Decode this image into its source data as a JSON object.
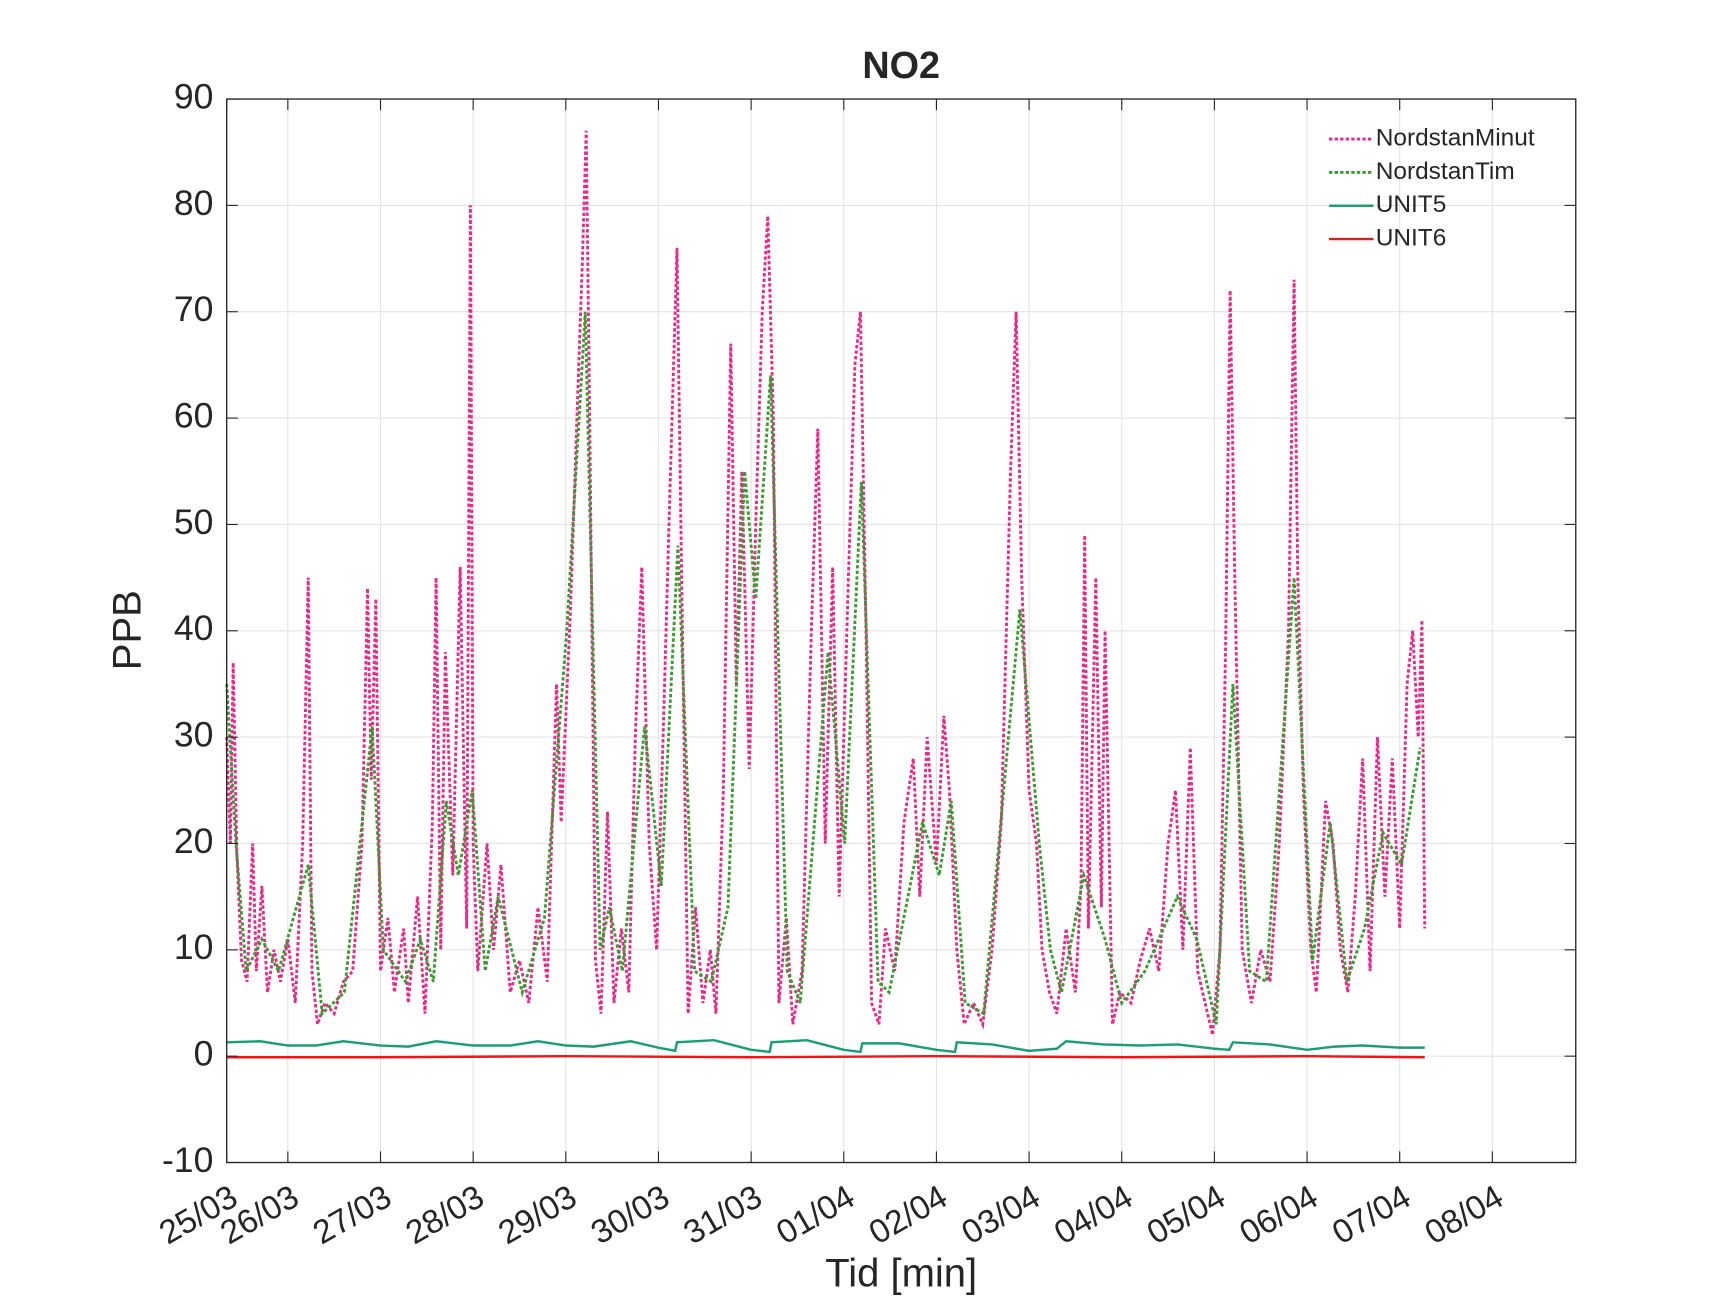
{
  "chart_data": {
    "type": "line",
    "title": "NO2",
    "xlabel": "Tid [min]",
    "ylabel": "PPB",
    "xlim": [
      0.34,
      14.9
    ],
    "xticks": [
      {
        "value": 0.34,
        "label": "25/03"
      },
      {
        "value": 1,
        "label": "26/03"
      },
      {
        "value": 2,
        "label": "27/03"
      },
      {
        "value": 3,
        "label": "28/03"
      },
      {
        "value": 4,
        "label": "29/03"
      },
      {
        "value": 5,
        "label": "30/03"
      },
      {
        "value": 6,
        "label": "31/03"
      },
      {
        "value": 7,
        "label": "01/04"
      },
      {
        "value": 8,
        "label": "02/04"
      },
      {
        "value": 9,
        "label": "03/04"
      },
      {
        "value": 10,
        "label": "04/04"
      },
      {
        "value": 11,
        "label": "05/04"
      },
      {
        "value": 12,
        "label": "06/04"
      },
      {
        "value": 13,
        "label": "07/04"
      },
      {
        "value": 14,
        "label": "08/04"
      }
    ],
    "ylim": [
      -10,
      90
    ],
    "yticks": [
      -10,
      0,
      10,
      20,
      30,
      40,
      50,
      60,
      70,
      80,
      90
    ],
    "grid": true,
    "legend": "top-right",
    "series": [
      {
        "name": "NordstanMinut",
        "color": "#e7298a",
        "style": "dotted",
        "x": [
          0.34,
          0.38,
          0.41,
          0.45,
          0.5,
          0.56,
          0.62,
          0.66,
          0.72,
          0.78,
          0.85,
          0.92,
          1.0,
          1.08,
          1.16,
          1.22,
          1.26,
          1.32,
          1.4,
          1.5,
          1.6,
          1.7,
          1.8,
          1.86,
          1.9,
          1.95,
          2.0,
          2.08,
          2.15,
          2.25,
          2.3,
          2.4,
          2.48,
          2.56,
          2.6,
          2.65,
          2.7,
          2.78,
          2.86,
          2.93,
          2.97,
          3.0,
          3.05,
          3.15,
          3.22,
          3.3,
          3.4,
          3.5,
          3.6,
          3.7,
          3.8,
          3.9,
          3.95,
          4.05,
          4.12,
          4.18,
          4.22,
          4.26,
          4.32,
          4.38,
          4.45,
          4.52,
          4.6,
          4.68,
          4.75,
          4.82,
          4.9,
          4.98,
          5.05,
          5.12,
          5.2,
          5.25,
          5.32,
          5.4,
          5.48,
          5.56,
          5.62,
          5.7,
          5.78,
          5.84,
          5.9,
          5.98,
          6.05,
          6.12,
          6.18,
          6.24,
          6.3,
          6.38,
          6.45,
          6.55,
          6.65,
          6.72,
          6.8,
          6.88,
          6.95,
          7.05,
          7.12,
          7.18,
          7.24,
          7.3,
          7.38,
          7.45,
          7.55,
          7.65,
          7.75,
          7.82,
          7.9,
          8.0,
          8.08,
          8.14,
          8.22,
          8.3,
          8.4,
          8.5,
          8.6,
          8.7,
          8.8,
          8.86,
          8.92,
          9.0,
          9.08,
          9.14,
          9.22,
          9.3,
          9.4,
          9.5,
          9.56,
          9.6,
          9.64,
          9.72,
          9.78,
          9.82,
          9.9,
          9.98,
          10.1,
          10.2,
          10.3,
          10.4,
          10.5,
          10.58,
          10.66,
          10.74,
          10.82,
          10.9,
          10.98,
          11.06,
          11.12,
          11.17,
          11.22,
          11.3,
          11.4,
          11.5,
          11.6,
          11.7,
          11.8,
          11.86,
          11.9,
          11.96,
          12.04,
          12.1,
          12.2,
          12.28,
          12.36,
          12.44,
          12.52,
          12.6,
          12.68,
          12.76,
          12.84,
          12.92,
          13.0,
          13.08,
          13.14,
          13.2,
          13.24,
          13.27
        ],
        "values": [
          30,
          20,
          37,
          19,
          9,
          7,
          20,
          8,
          16,
          6,
          10,
          7,
          11,
          5,
          20,
          45,
          8,
          3,
          5,
          4,
          7,
          8,
          20,
          44,
          26,
          43,
          8,
          13,
          6,
          12,
          5,
          15,
          4,
          22,
          45,
          10,
          38,
          17,
          46,
          12,
          80,
          20,
          8,
          20,
          10,
          18,
          6,
          9,
          5,
          14,
          7,
          35,
          22,
          42,
          60,
          75,
          87,
          58,
          9,
          4,
          23,
          5,
          12,
          6,
          30,
          46,
          20,
          10,
          30,
          52,
          76,
          45,
          4,
          14,
          5,
          10,
          4,
          25,
          67,
          35,
          55,
          27,
          50,
          70,
          79,
          60,
          5,
          13,
          3,
          8,
          40,
          59,
          20,
          46,
          15,
          45,
          65,
          70,
          40,
          5,
          3,
          12,
          8,
          22,
          28,
          15,
          30,
          18,
          32,
          25,
          10,
          3,
          5,
          3,
          10,
          22,
          55,
          70,
          45,
          25,
          20,
          10,
          6,
          4,
          12,
          6,
          16,
          49,
          12,
          45,
          14,
          40,
          3,
          6,
          5,
          9,
          12,
          8,
          20,
          25,
          10,
          29,
          8,
          5,
          2,
          10,
          38,
          72,
          45,
          10,
          5,
          10,
          7,
          20,
          40,
          73,
          45,
          25,
          10,
          6,
          24,
          20,
          10,
          6,
          15,
          28,
          8,
          30,
          15,
          28,
          12,
          35,
          40,
          30,
          41,
          12
        ]
      },
      {
        "name": "NordstanTim",
        "color": "#3a9c2e",
        "style": "dotted",
        "x": [
          0.34,
          0.44,
          0.55,
          0.72,
          0.9,
          1.22,
          1.37,
          1.61,
          1.91,
          2.03,
          2.27,
          2.43,
          2.57,
          2.71,
          2.84,
          2.99,
          3.13,
          3.27,
          3.53,
          3.77,
          4.01,
          4.21,
          4.37,
          4.47,
          4.61,
          4.85,
          5.03,
          5.21,
          5.39,
          5.57,
          5.75,
          5.93,
          6.05,
          6.21,
          6.39,
          6.53,
          6.83,
          7.01,
          7.19,
          7.37,
          7.49,
          7.85,
          8.03,
          8.16,
          8.31,
          8.51,
          8.9,
          9.11,
          9.23,
          9.35,
          9.59,
          9.82,
          10.0,
          10.25,
          10.6,
          10.81,
          11.02,
          11.2,
          11.38,
          11.56,
          11.86,
          12.06,
          12.25,
          12.43,
          12.62,
          12.82,
          13.02,
          13.22
        ],
        "values": [
          35,
          20,
          8,
          11,
          8,
          18,
          4,
          6,
          31,
          10,
          7,
          11,
          7,
          24,
          17,
          25,
          8,
          15,
          6,
          13,
          40,
          70,
          10,
          14,
          8,
          31,
          16,
          48,
          8,
          7,
          14,
          55,
          43,
          64,
          8,
          5,
          38,
          20,
          54,
          7,
          6,
          22,
          17,
          24,
          5,
          4,
          42,
          20,
          10,
          6,
          17,
          11,
          5,
          8,
          15,
          11,
          3,
          35,
          8,
          7,
          45,
          9,
          22,
          7,
          12,
          21,
          18,
          29
        ]
      },
      {
        "name": "UNIT5",
        "color": "#1b9e77",
        "style": "solid",
        "x": [
          0.34,
          0.7,
          1.0,
          1.3,
          1.6,
          2.0,
          2.3,
          2.6,
          3.0,
          3.4,
          3.7,
          4.0,
          4.3,
          4.7,
          5.0,
          5.18,
          5.2,
          5.6,
          6.0,
          6.2,
          6.22,
          6.6,
          7.0,
          7.18,
          7.2,
          7.6,
          8.0,
          8.2,
          8.22,
          8.6,
          9.0,
          9.3,
          9.4,
          9.8,
          10.2,
          10.6,
          11.0,
          11.16,
          11.2,
          11.6,
          12.0,
          12.3,
          12.6,
          13.0,
          13.27
        ],
        "values": [
          1.3,
          1.4,
          1.0,
          1.0,
          1.4,
          1.0,
          0.9,
          1.4,
          1.0,
          1.0,
          1.4,
          1.0,
          0.9,
          1.4,
          0.8,
          0.5,
          1.3,
          1.5,
          0.6,
          0.4,
          1.3,
          1.5,
          0.6,
          0.4,
          1.2,
          1.2,
          0.6,
          0.4,
          1.3,
          1.1,
          0.5,
          0.7,
          1.4,
          1.1,
          1.0,
          1.1,
          0.7,
          0.6,
          1.3,
          1.1,
          0.6,
          0.9,
          1.0,
          0.8,
          0.8
        ]
      },
      {
        "name": "UNIT6",
        "color": "#e41a1c",
        "style": "solid",
        "x": [
          0.34,
          2,
          4,
          6,
          8,
          10,
          12,
          13.27
        ],
        "values": [
          -0.1,
          -0.1,
          0,
          -0.1,
          0,
          -0.1,
          0,
          -0.1
        ]
      }
    ]
  }
}
